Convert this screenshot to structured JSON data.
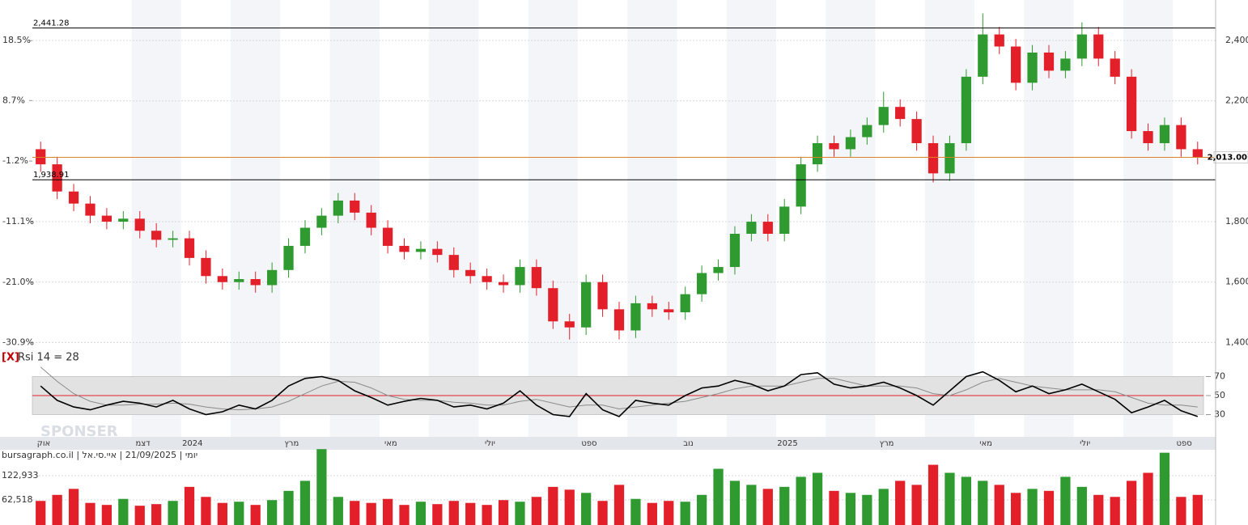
{
  "chart_data": [
    {
      "type": "candlestick",
      "categories": [
        "אוק",
        null,
        null,
        null,
        null,
        null,
        "דצמ",
        null,
        null,
        "2024",
        null,
        null,
        null,
        null,
        null,
        "מרץ",
        null,
        null,
        null,
        null,
        null,
        "מאי",
        null,
        null,
        null,
        null,
        null,
        "יולי",
        null,
        null,
        null,
        null,
        null,
        "ספט",
        null,
        null,
        null,
        null,
        null,
        "נוב",
        null,
        null,
        null,
        null,
        null,
        "2025",
        null,
        null,
        null,
        null,
        null,
        "מרץ",
        null,
        null,
        null,
        null,
        null,
        "מאי",
        null,
        null,
        null,
        null,
        null,
        "יולי",
        null,
        null,
        null,
        null,
        null,
        "ספט",
        null
      ],
      "open": [
        2040,
        1990,
        1900,
        1860,
        1820,
        1800,
        1810,
        1770,
        1740,
        1745,
        1680,
        1620,
        1600,
        1610,
        1590,
        1640,
        1720,
        1780,
        1820,
        1870,
        1830,
        1780,
        1720,
        1700,
        1710,
        1690,
        1640,
        1620,
        1600,
        1590,
        1650,
        1580,
        1470,
        1450,
        1600,
        1510,
        1440,
        1530,
        1510,
        1500,
        1560,
        1630,
        1650,
        1760,
        1800,
        1760,
        1850,
        1990,
        2060,
        2040,
        2080,
        2120,
        2180,
        2140,
        2060,
        1960,
        2060,
        2280,
        2420,
        2380,
        2260,
        2360,
        2300,
        2340,
        2420,
        2340,
        2280,
        2100,
        2060,
        2120,
        2040
      ],
      "high": [
        2065,
        2015,
        1925,
        1885,
        1845,
        1835,
        1835,
        1795,
        1770,
        1770,
        1705,
        1645,
        1635,
        1635,
        1665,
        1745,
        1805,
        1845,
        1895,
        1895,
        1855,
        1805,
        1745,
        1735,
        1735,
        1715,
        1665,
        1645,
        1625,
        1675,
        1675,
        1605,
        1495,
        1625,
        1625,
        1535,
        1555,
        1555,
        1535,
        1585,
        1655,
        1675,
        1785,
        1825,
        1825,
        1875,
        2015,
        2085,
        2085,
        2105,
        2145,
        2230,
        2205,
        2165,
        2085,
        2085,
        2305,
        2490,
        2445,
        2405,
        2385,
        2385,
        2365,
        2460,
        2445,
        2365,
        2305,
        2125,
        2145,
        2145,
        2065
      ],
      "low": [
        1965,
        1875,
        1835,
        1795,
        1775,
        1775,
        1745,
        1715,
        1715,
        1655,
        1595,
        1575,
        1575,
        1565,
        1565,
        1615,
        1695,
        1755,
        1795,
        1805,
        1755,
        1695,
        1675,
        1675,
        1665,
        1615,
        1595,
        1575,
        1565,
        1565,
        1555,
        1445,
        1410,
        1425,
        1485,
        1410,
        1415,
        1485,
        1475,
        1475,
        1535,
        1605,
        1625,
        1735,
        1735,
        1735,
        1825,
        1965,
        2015,
        2015,
        2055,
        2095,
        2115,
        2035,
        1930,
        1935,
        2035,
        2255,
        2355,
        2235,
        2235,
        2275,
        2275,
        2315,
        2315,
        2255,
        2075,
        2035,
        2035,
        2015,
        1990
      ],
      "close": [
        1990,
        1900,
        1860,
        1820,
        1800,
        1810,
        1770,
        1740,
        1745,
        1680,
        1620,
        1600,
        1610,
        1590,
        1640,
        1720,
        1780,
        1820,
        1870,
        1830,
        1780,
        1720,
        1700,
        1710,
        1690,
        1640,
        1620,
        1600,
        1590,
        1650,
        1580,
        1470,
        1450,
        1600,
        1510,
        1440,
        1530,
        1510,
        1500,
        1560,
        1630,
        1650,
        1760,
        1800,
        1760,
        1850,
        1990,
        2060,
        2040,
        2080,
        2120,
        2180,
        2140,
        2060,
        1960,
        2060,
        2280,
        2420,
        2380,
        2260,
        2360,
        2300,
        2340,
        2420,
        2340,
        2280,
        2100,
        2060,
        2120,
        2040,
        2013
      ],
      "up_color": "#2f9a2f",
      "down_color": "#e3202a",
      "ylim": [
        1377,
        2534
      ],
      "yticks": [
        {
          "value": 1400,
          "label": "1,400"
        },
        {
          "value": 1600,
          "label": "1,600"
        },
        {
          "value": 1800,
          "label": "1,800"
        },
        {
          "value": 2200,
          "label": "2,200"
        },
        {
          "value": 2400,
          "label": "2,400"
        }
      ],
      "y2lim": [
        -32.0,
        25.14
      ],
      "y2ticks": [
        {
          "value": -30.9,
          "label": "-30.9%"
        },
        {
          "value": -21.0,
          "label": "-21.0%"
        },
        {
          "value": -11.1,
          "label": "-11.1%"
        },
        {
          "value": -1.2,
          "label": "-1.2%"
        },
        {
          "value": 8.7,
          "label": "8.7%"
        },
        {
          "value": 18.5,
          "label": "18.5%"
        }
      ],
      "levels": [
        {
          "value": 2441.28,
          "label": "2,441.28"
        },
        {
          "value": 1938.91,
          "label": "1,938.91"
        }
      ],
      "last": {
        "value": 2013,
        "label": "2,013.00",
        "color": "#d9822b"
      },
      "grid": true
    },
    {
      "type": "line",
      "close_label": "[X]",
      "title": "Rsi 14 = 28",
      "watermark": "SPONSER",
      "series": [
        {
          "color": "#000000",
          "values": [
            60,
            45,
            38,
            35,
            40,
            44,
            42,
            38,
            45,
            36,
            30,
            33,
            40,
            36,
            45,
            60,
            68,
            70,
            66,
            55,
            48,
            40,
            44,
            47,
            45,
            38,
            40,
            36,
            42,
            55,
            40,
            30,
            28,
            52,
            35,
            28,
            45,
            42,
            40,
            50,
            58,
            60,
            66,
            62,
            55,
            60,
            72,
            74,
            62,
            58,
            60,
            64,
            58,
            50,
            40,
            55,
            70,
            75,
            66,
            54,
            60,
            52,
            56,
            62,
            54,
            46,
            32,
            38,
            45,
            34,
            28
          ]
        },
        {
          "color": "#8a8a8a",
          "values": [
            80,
            65,
            52,
            44,
            40,
            40,
            41,
            41,
            42,
            41,
            38,
            36,
            35,
            36,
            38,
            44,
            52,
            60,
            65,
            64,
            58,
            50,
            46,
            45,
            45,
            43,
            42,
            40,
            40,
            44,
            46,
            42,
            38,
            40,
            40,
            36,
            38,
            40,
            42,
            44,
            48,
            52,
            57,
            60,
            60,
            60,
            64,
            68,
            68,
            64,
            60,
            60,
            60,
            58,
            52,
            50,
            56,
            64,
            68,
            64,
            60,
            58,
            56,
            56,
            56,
            54,
            48,
            42,
            40,
            40,
            38
          ]
        }
      ],
      "ylim": [
        6.6,
        93.4
      ],
      "yticks": [
        30,
        50,
        70
      ],
      "band": [
        30,
        70
      ],
      "midline": 50
    },
    {
      "type": "bar",
      "source": "יומי | 21/09/2025 | איי.סי.אל | bursagraph.co.il",
      "values": [
        60000,
        75000,
        90000,
        55000,
        50000,
        65000,
        48000,
        52000,
        60000,
        95000,
        70000,
        55000,
        58000,
        50000,
        62000,
        85000,
        110000,
        189000,
        70000,
        60000,
        55000,
        65000,
        50000,
        58000,
        52000,
        60000,
        55000,
        50000,
        62000,
        58000,
        70000,
        95000,
        88000,
        80000,
        60000,
        100000,
        65000,
        55000,
        60000,
        58000,
        75000,
        140000,
        110000,
        100000,
        90000,
        95000,
        120000,
        130000,
        85000,
        80000,
        75000,
        90000,
        110000,
        100000,
        150000,
        130000,
        120000,
        110000,
        100000,
        80000,
        90000,
        85000,
        120000,
        95000,
        75000,
        70000,
        110000,
        130000,
        180000,
        70000,
        75000
      ],
      "ylim": [
        0,
        189400
      ],
      "yticks": [
        {
          "value": 62518,
          "label": "62,518"
        },
        {
          "value": 122933,
          "label": "122,933"
        }
      ]
    }
  ]
}
